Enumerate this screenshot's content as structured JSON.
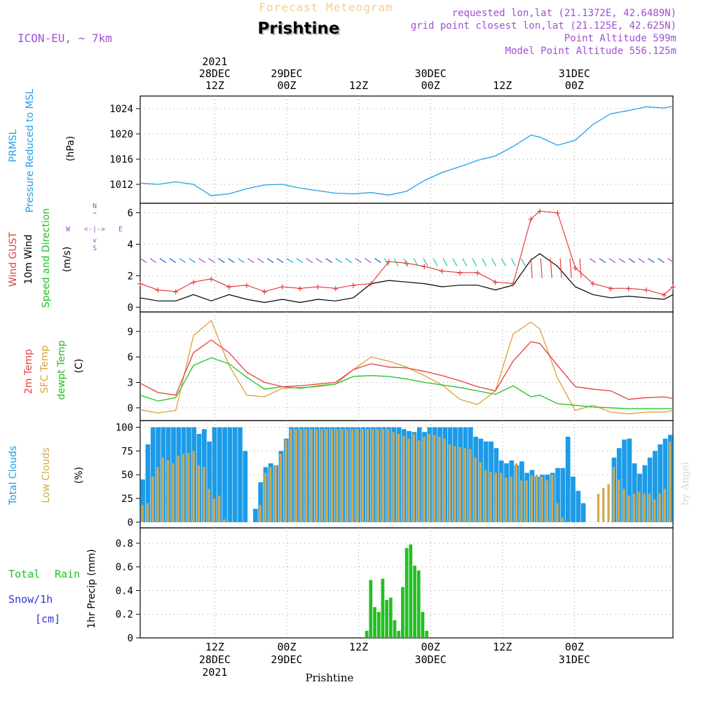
{
  "header": {
    "title_faded": "Forecast Meteogram",
    "location": "Prishtine",
    "model": "ICON-EU, ~ 7km",
    "requested": "requested lon,lat (21.1372E, 42.6489N)",
    "grid_point": "grid point closest lon,lat (21.125E, 42.625N)",
    "point_altitude": "Point Altitude 599m",
    "model_altitude": "Model Point Altitude 556.125m"
  },
  "time_axis": {
    "top_year": "2021",
    "top": [
      {
        "l1": "28DEC",
        "l2": "12Z"
      },
      {
        "l1": "29DEC",
        "l2": "00Z"
      },
      {
        "l1": "",
        "l2": "12Z"
      },
      {
        "l1": "30DEC",
        "l2": "00Z"
      },
      {
        "l1": "",
        "l2": "12Z"
      },
      {
        "l1": "31DEC",
        "l2": "00Z"
      }
    ],
    "bottom": [
      {
        "l1": "12Z",
        "l2": "28DEC",
        "l3": "2021"
      },
      {
        "l1": "00Z",
        "l2": "29DEC",
        "l3": ""
      },
      {
        "l1": "12Z",
        "l2": "",
        "l3": ""
      },
      {
        "l1": "00Z",
        "l2": "30DEC",
        "l3": ""
      },
      {
        "l1": "12Z",
        "l2": "",
        "l3": ""
      },
      {
        "l1": "00Z",
        "l2": "31DEC",
        "l3": ""
      }
    ],
    "footer_location": "Prishtine",
    "watermark": "by Angel"
  },
  "colors": {
    "pressure": "#1ea0e8",
    "gust": "#e83c3c",
    "wind": "#000000",
    "temp2m": "#e83c3c",
    "sfc": "#dca038",
    "dewpt": "#22c022",
    "total_clouds": "#1b9be8",
    "low_clouds": "#d4a84a",
    "rain": "#22c022",
    "snow": "#3030e0",
    "purple": "#a050d0"
  },
  "panel_labels": {
    "pressure": {
      "name": "PRMSL",
      "desc": "Pressure Reduced to MSL",
      "unit": "(hPa)"
    },
    "wind": {
      "gust": "Wind GUST",
      "wind": "10m Wind",
      "speed_dir": "Speed and Direction",
      "unit": "(m/s)",
      "compass_n": "N",
      "compass_s": "S",
      "compass_w": "W",
      "compass_e": "E"
    },
    "temp": {
      "t2m": "2m Temp",
      "sfc": "SFC Temp",
      "dew": "dewpt Temp",
      "unit": "(C)"
    },
    "clouds": {
      "total": "Total Clouds",
      "low": "Low Clouds",
      "unit": "(%)"
    },
    "precip": {
      "rain_total": "Total",
      "rain_rain": "Rain",
      "snow": "Snow/1h",
      "snow_unit": "[cm]",
      "axis": "1hr Precip (mm)"
    }
  },
  "chart_data": [
    {
      "type": "line",
      "title": "PRMSL Pressure Reduced to MSL",
      "ylabel": "(hPa)",
      "ylim": [
        1009,
        1026
      ],
      "yticks": [
        "1024",
        "1020",
        "1016",
        "1012"
      ],
      "x_hours": [
        0,
        4,
        8,
        12,
        16,
        20,
        24,
        28,
        32,
        36,
        40,
        44,
        48,
        52,
        56,
        60,
        64,
        68,
        72,
        76,
        80,
        84,
        88,
        90,
        94,
        98,
        102,
        106,
        110,
        114,
        118,
        120
      ],
      "series": [
        {
          "name": "PRMSL",
          "values": [
            1012.2,
            1012.0,
            1012.4,
            1012.0,
            1010.2,
            1010.5,
            1011.3,
            1011.9,
            1012.0,
            1011.4,
            1011.0,
            1010.6,
            1010.5,
            1010.7,
            1010.3,
            1010.9,
            1012.6,
            1013.9,
            1014.8,
            1015.8,
            1016.5,
            1018.0,
            1019.8,
            1019.5,
            1018.2,
            1019.0,
            1021.5,
            1023.2,
            1023.7,
            1024.3,
            1024.1,
            1024.4
          ]
        }
      ]
    },
    {
      "type": "line",
      "title": "Wind GUST / 10m Wind Speed and Direction",
      "ylabel": "(m/s)",
      "ylim": [
        -0.3,
        6.6
      ],
      "yticks": [
        "6",
        "4",
        "2",
        "0"
      ],
      "x_hours": [
        0,
        4,
        8,
        12,
        16,
        20,
        24,
        28,
        32,
        36,
        40,
        44,
        48,
        52,
        56,
        60,
        64,
        68,
        72,
        76,
        80,
        84,
        88,
        90,
        94,
        98,
        102,
        106,
        110,
        114,
        118,
        120
      ],
      "series": [
        {
          "name": "Wind GUST",
          "values": [
            1.5,
            1.1,
            1.0,
            1.6,
            1.8,
            1.3,
            1.4,
            1.0,
            1.3,
            1.2,
            1.3,
            1.2,
            1.4,
            1.5,
            2.9,
            2.8,
            2.6,
            2.3,
            2.2,
            2.2,
            1.6,
            1.5,
            5.6,
            6.1,
            6.0,
            2.5,
            1.5,
            1.2,
            1.2,
            1.1,
            0.8,
            1.3
          ]
        },
        {
          "name": "10m Wind",
          "values": [
            0.6,
            0.4,
            0.4,
            0.8,
            0.4,
            0.8,
            0.5,
            0.3,
            0.5,
            0.3,
            0.5,
            0.4,
            0.6,
            1.5,
            1.7,
            1.6,
            1.5,
            1.3,
            1.4,
            1.4,
            1.1,
            1.4,
            3.0,
            3.4,
            2.6,
            1.3,
            0.8,
            0.6,
            0.7,
            0.6,
            0.5,
            0.8
          ]
        }
      ]
    },
    {
      "type": "line",
      "title": "2m Temp / SFC Temp / dewpt Temp",
      "ylabel": "(C)",
      "ylim": [
        -1.5,
        11.3
      ],
      "yticks": [
        "9",
        "6",
        "3",
        "0"
      ],
      "x_hours": [
        0,
        4,
        8,
        12,
        16,
        20,
        24,
        28,
        32,
        36,
        40,
        44,
        48,
        52,
        56,
        60,
        64,
        68,
        72,
        76,
        80,
        84,
        88,
        90,
        94,
        98,
        102,
        106,
        110,
        114,
        118,
        120
      ],
      "series": [
        {
          "name": "2m Temp",
          "values": [
            2.9,
            1.8,
            1.5,
            6.5,
            8.0,
            6.5,
            4.2,
            3.0,
            2.5,
            2.6,
            2.8,
            3.0,
            4.5,
            5.2,
            4.8,
            4.7,
            4.3,
            3.8,
            3.2,
            2.5,
            2.0,
            5.5,
            7.8,
            7.6,
            5.0,
            2.5,
            2.2,
            2.0,
            1.0,
            1.2,
            1.3,
            1.1
          ]
        },
        {
          "name": "SFC Temp",
          "values": [
            -0.2,
            -0.6,
            -0.3,
            8.5,
            10.3,
            5.0,
            1.5,
            1.3,
            2.3,
            2.4,
            2.5,
            2.8,
            4.5,
            6.0,
            5.5,
            4.8,
            3.8,
            2.7,
            1.0,
            0.4,
            2.0,
            8.7,
            10.1,
            9.3,
            3.5,
            -0.3,
            0.3,
            -0.5,
            -0.7,
            -0.5,
            -0.5,
            -0.3
          ]
        },
        {
          "name": "dewpt Temp",
          "values": [
            1.5,
            0.8,
            1.2,
            5.0,
            5.9,
            5.2,
            3.6,
            2.2,
            2.5,
            2.3,
            2.6,
            2.8,
            3.7,
            3.8,
            3.7,
            3.4,
            3.0,
            2.7,
            2.4,
            2.0,
            1.6,
            2.6,
            1.3,
            1.5,
            0.5,
            0.3,
            0.1,
            0.0,
            -0.1,
            -0.1,
            -0.1,
            -0.1
          ]
        }
      ]
    },
    {
      "type": "bar",
      "title": "Total Clouds / Low Clouds",
      "ylabel": "(%)",
      "ylim": [
        -6,
        107
      ],
      "yticks": [
        "100",
        "75",
        "50",
        "25",
        "0"
      ],
      "bar_start_hour": 0,
      "bar_step_hours": 1,
      "series": [
        {
          "name": "Total Clouds",
          "values": [
            45,
            82,
            100,
            100,
            100,
            100,
            100,
            100,
            100,
            100,
            100,
            93,
            98,
            85,
            100,
            100,
            100,
            100,
            100,
            100,
            75,
            0,
            14,
            42,
            58,
            62,
            60,
            75,
            88,
            100,
            100,
            100,
            100,
            100,
            100,
            100,
            100,
            100,
            100,
            100,
            100,
            100,
            100,
            100,
            100,
            100,
            100,
            100,
            100,
            100,
            100,
            98,
            96,
            95,
            100,
            95,
            100,
            100,
            100,
            100,
            100,
            100,
            100,
            100,
            100,
            90,
            88,
            85,
            85,
            78,
            65,
            62,
            65,
            60,
            64,
            52,
            55,
            48,
            50,
            50,
            52,
            57,
            57,
            90,
            48,
            33,
            20,
            0,
            0,
            0,
            0,
            0,
            68,
            78,
            87,
            88,
            62,
            51,
            60,
            68,
            75,
            82,
            88,
            92
          ]
        },
        {
          "name": "Low Clouds",
          "values": [
            18,
            20,
            48,
            58,
            68,
            65,
            62,
            70,
            72,
            73,
            75,
            60,
            58,
            35,
            25,
            28,
            3,
            0,
            0,
            0,
            0,
            0,
            0,
            18,
            52,
            58,
            60,
            72,
            87,
            98,
            98,
            98,
            98,
            98,
            98,
            98,
            98,
            98,
            98,
            98,
            98,
            98,
            98,
            98,
            98,
            98,
            98,
            98,
            98,
            95,
            93,
            91,
            88,
            93,
            86,
            90,
            93,
            92,
            90,
            88,
            82,
            80,
            79,
            78,
            77,
            68,
            63,
            55,
            53,
            52,
            52,
            47,
            48,
            62,
            44,
            44,
            49,
            50,
            48,
            44,
            50,
            20,
            5,
            0,
            0,
            0,
            0,
            0,
            0,
            30,
            36,
            40,
            58,
            45,
            35,
            28,
            30,
            32,
            30,
            30,
            24,
            30,
            35,
            85
          ]
        }
      ]
    },
    {
      "type": "bar",
      "title": "1hr Precip (mm)",
      "ylabel": "1hr Precip (mm)",
      "ylim": [
        0,
        0.93
      ],
      "yticks": [
        "0.8",
        "0.6",
        "0.4",
        "0.2",
        "0"
      ],
      "bar_start_hour": 50,
      "bar_step_hours": 1,
      "series": [
        {
          "name": "Total Rain",
          "values": [
            0.06,
            0.49,
            0.26,
            0.22,
            0.5,
            0.32,
            0.34,
            0.15,
            0.06,
            0.43,
            0.76,
            0.79,
            0.61,
            0.57,
            0.22,
            0.06
          ]
        }
      ]
    }
  ]
}
